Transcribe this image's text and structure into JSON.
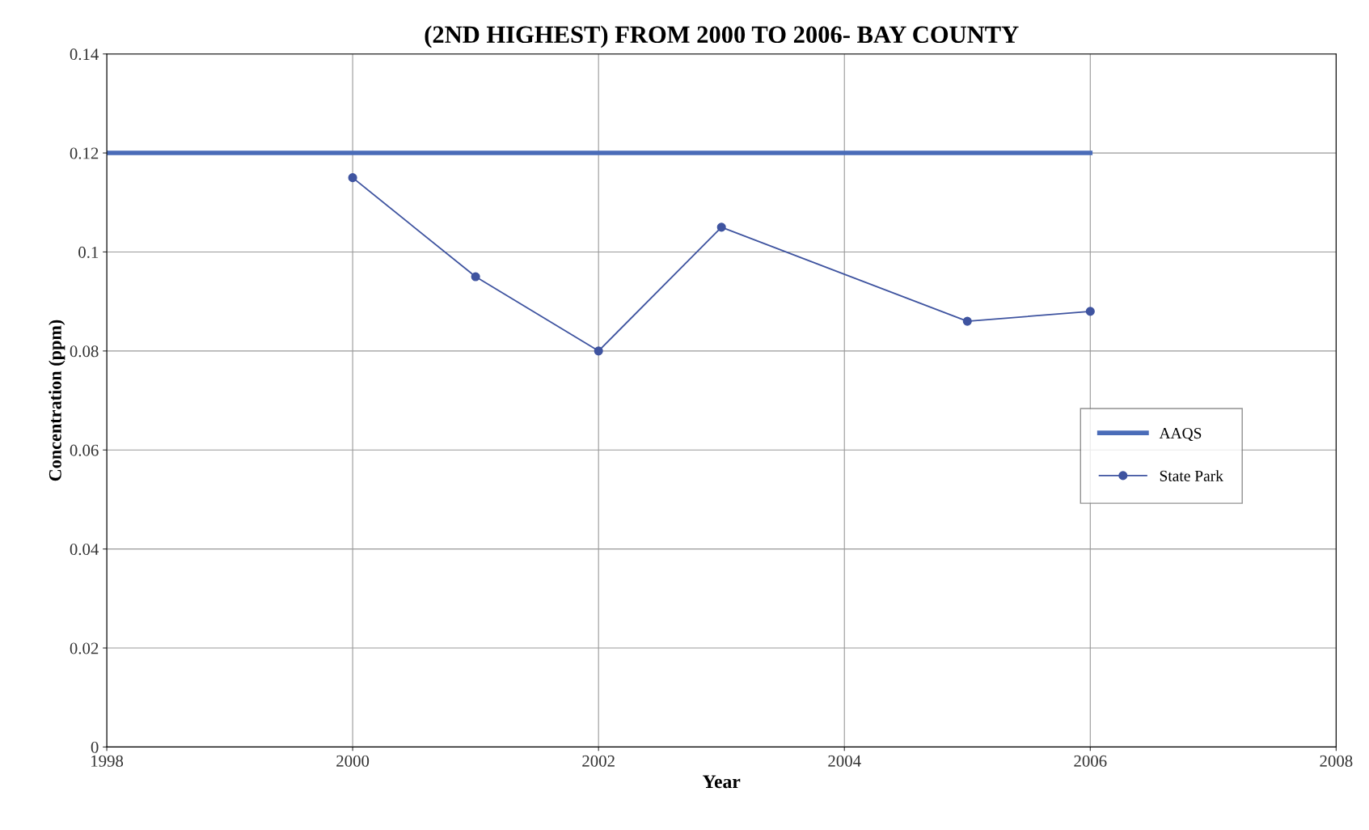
{
  "chart_data": {
    "type": "line",
    "title": "(2ND HIGHEST) FROM 2000 TO 2006- BAY COUNTY",
    "xlabel": "Year",
    "ylabel": "Concentration (ppm)",
    "series": [
      {
        "name": "AAQS",
        "color": "#4a6cb8",
        "x": [
          1998,
          2006
        ],
        "values": [
          0.12,
          0.12
        ],
        "marker": "none"
      },
      {
        "name": "State Park",
        "color": "#3f54a0",
        "x": [
          2000,
          2001,
          2002,
          2003,
          2005,
          2006
        ],
        "values": [
          0.115,
          0.095,
          0.08,
          0.105,
          0.086,
          0.088
        ],
        "marker": "circle"
      }
    ],
    "xlim": [
      1998,
      2008
    ],
    "xticks": [
      1998,
      2000,
      2002,
      2004,
      2006,
      2008
    ],
    "ylim": [
      0,
      0.14
    ],
    "yticks": [
      0,
      0.02,
      0.04,
      0.06,
      0.08,
      0.1,
      0.12,
      0.14
    ],
    "grid": true,
    "legend": "right",
    "line_style": "solid"
  }
}
